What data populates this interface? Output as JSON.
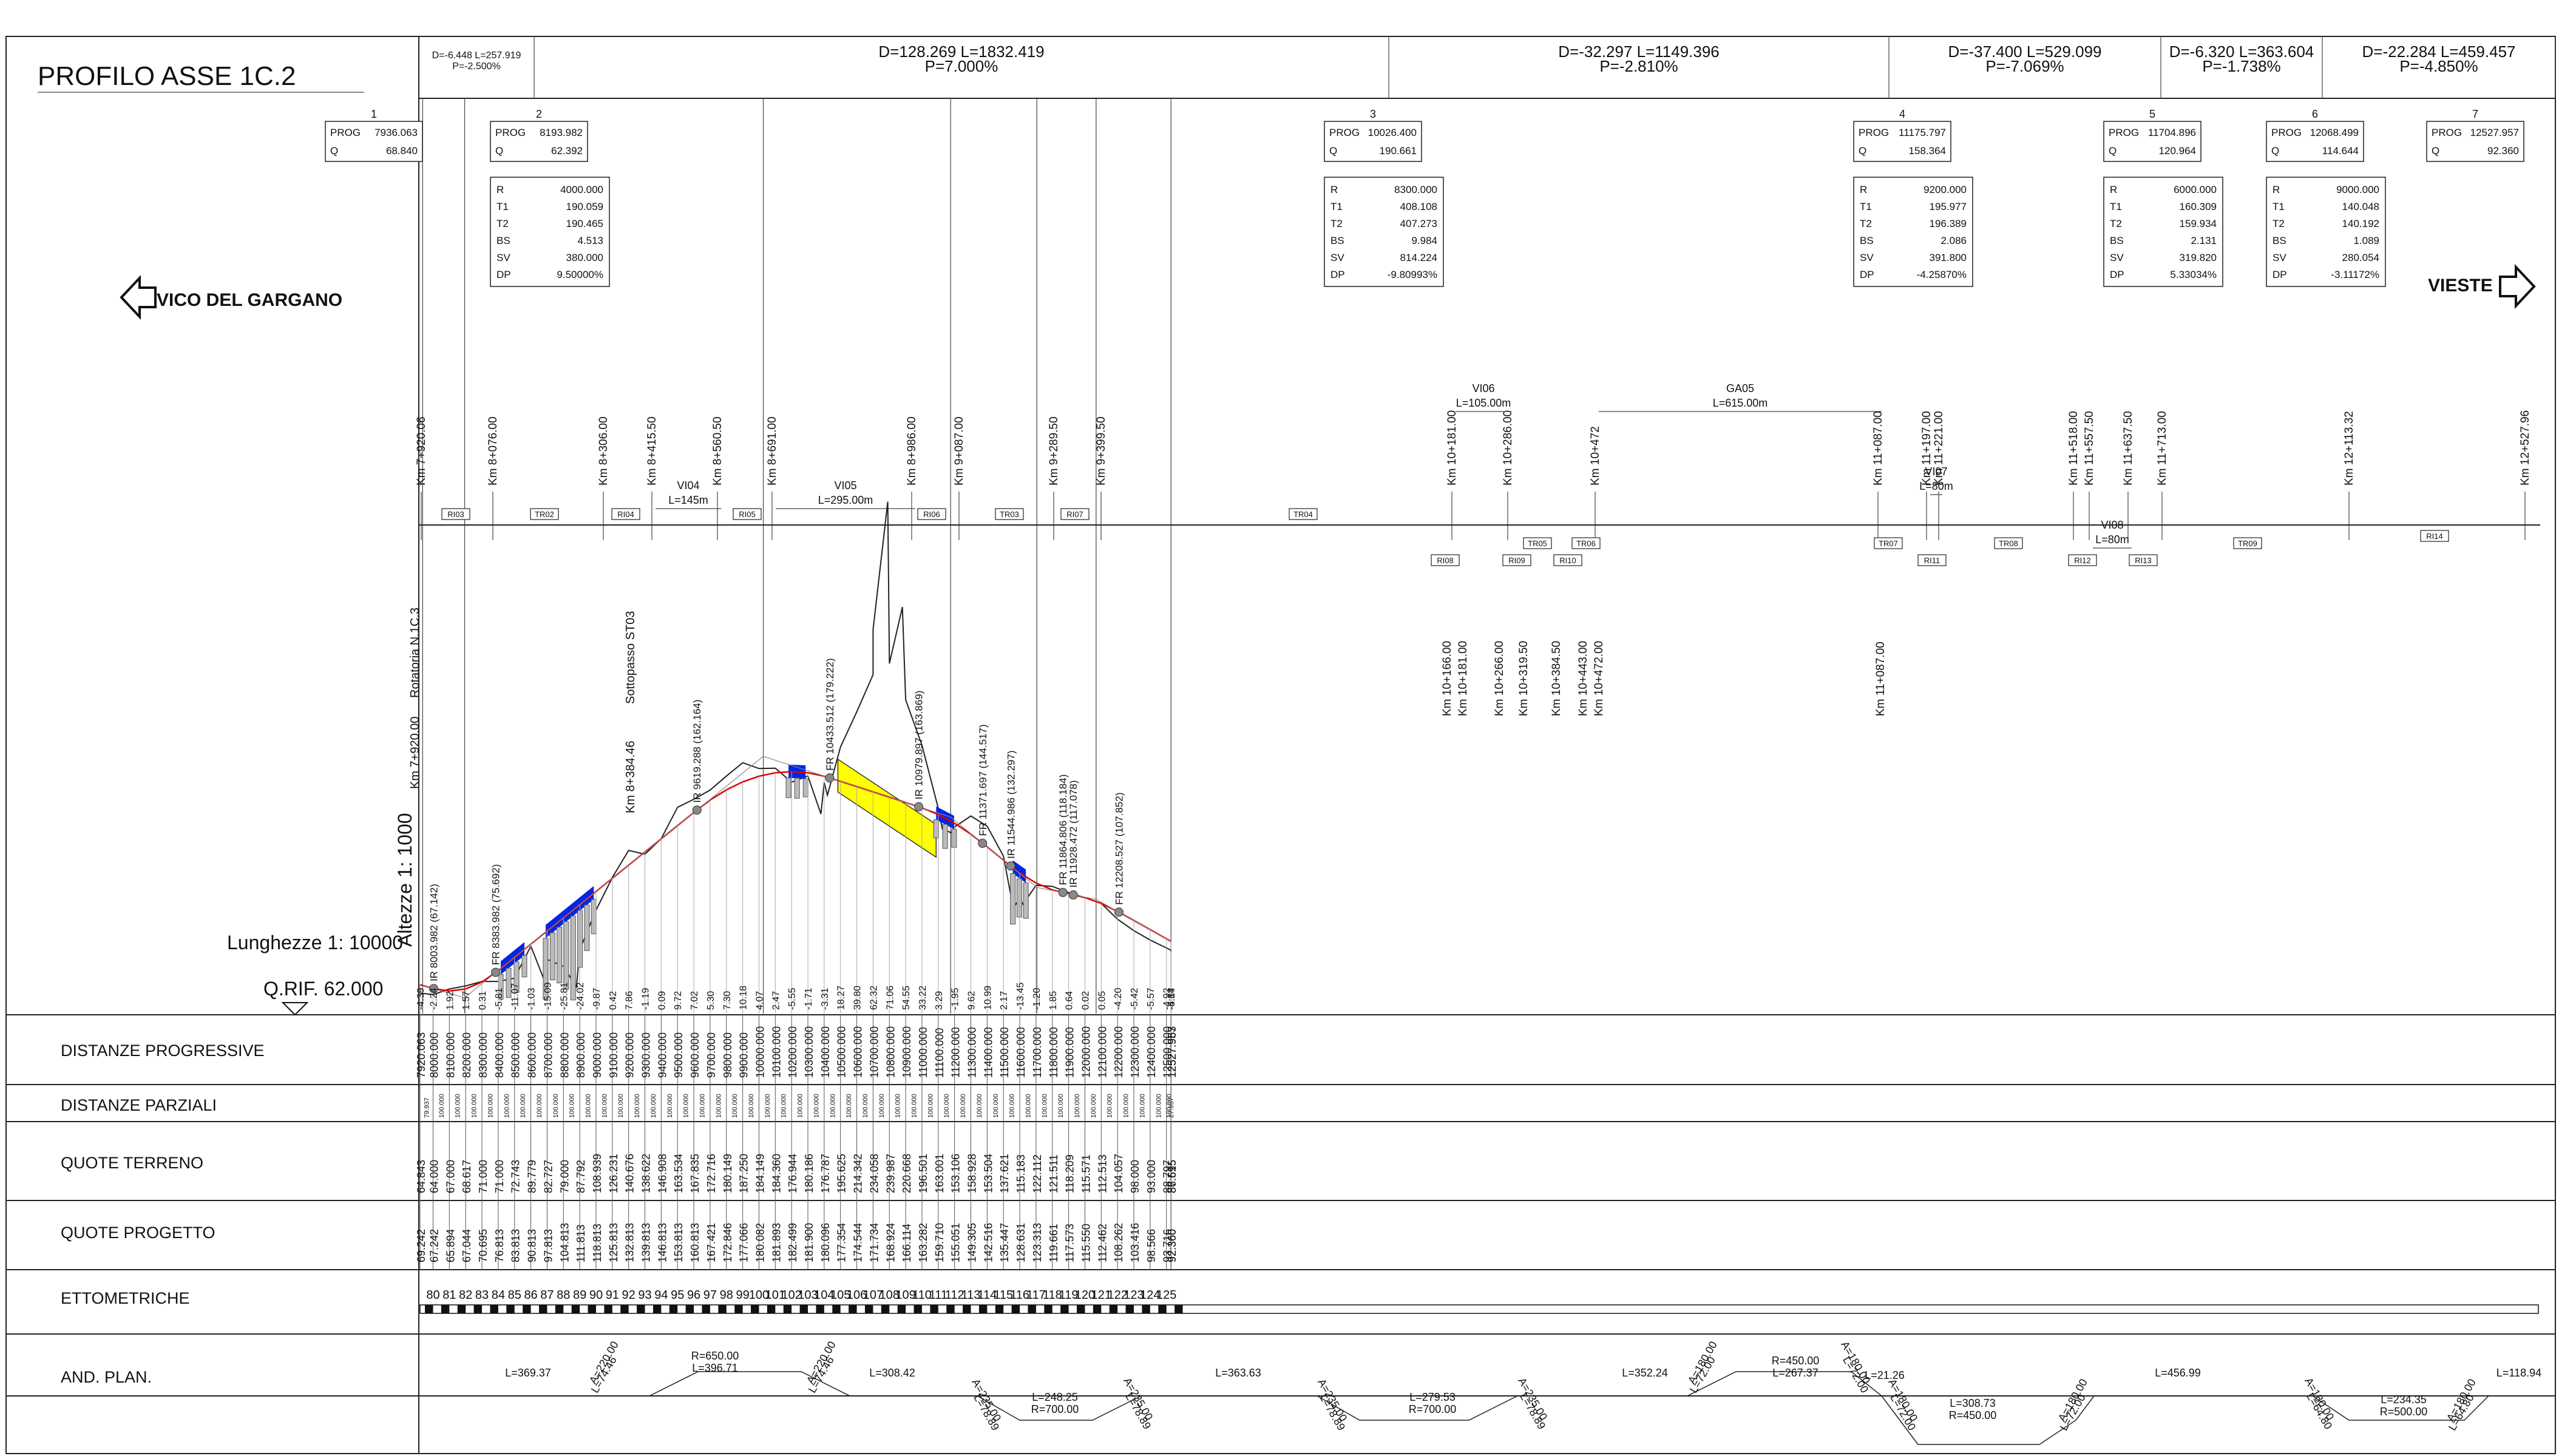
{
  "title": "PROFILO ASSE 1C.2",
  "direction_left": "VICO DEL GARGANO",
  "direction_right": "VIESTE",
  "scale_vertical": "Altezze 1: 1000",
  "scale_horizontal": "Lunghezze 1: 10000",
  "reference_level": "Q.RIF. 62.000",
  "rotatoria_label": "Rotatoria N.1C.3",
  "km_start_label": "Km 7+920.00",
  "sottopasso_label": "Sottopasso ST03",
  "sottopasso_km": "Km 8+384.46",
  "gradients": [
    {
      "d": "D=-6.448 L=257.919",
      "p": "P=-2.500%"
    },
    {
      "d": "D=128.269 L=1832.419",
      "p": "P=7.000%"
    },
    {
      "d": "D=-32.297 L=1149.396",
      "p": "P=-2.810%"
    },
    {
      "d": "D=-37.400 L=529.099",
      "p": "P=-7.069%"
    },
    {
      "d": "D=-6.320 L=363.604",
      "p": "P=-1.738%"
    },
    {
      "d": "D=-22.284 L=459.457",
      "p": "P=-4.850%"
    }
  ],
  "vertices": [
    {
      "n": "1",
      "prog": "7936.063",
      "q": "68.840"
    },
    {
      "n": "2",
      "prog": "8193.982",
      "q": "62.392",
      "r": "4000.000",
      "t1": "190.059",
      "t2": "190.465",
      "bs": "4.513",
      "sv": "380.000",
      "dp": "9.50000%"
    },
    {
      "n": "3",
      "prog": "10026.400",
      "q": "190.661",
      "r": "8300.000",
      "t1": "408.108",
      "t2": "407.273",
      "bs": "9.984",
      "sv": "814.224",
      "dp": "-9.80993%"
    },
    {
      "n": "4",
      "prog": "11175.797",
      "q": "158.364",
      "r": "9200.000",
      "t1": "195.977",
      "t2": "196.389",
      "bs": "2.086",
      "sv": "391.800",
      "dp": "-4.25870%"
    },
    {
      "n": "5",
      "prog": "11704.896",
      "q": "120.964",
      "r": "6000.000",
      "t1": "160.309",
      "t2": "159.934",
      "bs": "2.131",
      "sv": "319.820",
      "dp": "5.33034%"
    },
    {
      "n": "6",
      "prog": "12068.499",
      "q": "114.644",
      "r": "9000.000",
      "t1": "140.048",
      "t2": "140.192",
      "bs": "1.089",
      "sv": "280.054",
      "dp": "-3.11172%"
    },
    {
      "n": "7",
      "prog": "12527.957",
      "q": "92.360"
    }
  ],
  "param_labels": {
    "prog": "PROG",
    "q": "Q",
    "r": "R",
    "t1": "T1",
    "t2": "T2",
    "bs": "BS",
    "sv": "SV",
    "dp": "DP"
  },
  "km_labels": [
    {
      "t": "Km 7+920.06"
    },
    {
      "t": "Km 8+076.00"
    },
    {
      "t": "Km 8+306.00"
    },
    {
      "t": "Km 8+415.50"
    },
    {
      "t": "Km 8+560.50"
    },
    {
      "t": "Km 8+691.00"
    },
    {
      "t": "Km 8+986.00"
    },
    {
      "t": "Km 9+087.00"
    },
    {
      "t": "Km 9+289.50"
    },
    {
      "t": "Km 9+399.50"
    },
    {
      "t": "Km 10+181.00"
    },
    {
      "t": "Km 10+286.00"
    },
    {
      "t": "Km 10+472"
    },
    {
      "t": "Km 11+087.00"
    },
    {
      "t": "Km 11+197.00"
    },
    {
      "t": "Km 11+221.00"
    },
    {
      "t": "Km 11+518.00"
    },
    {
      "t": "Km 11+557.50"
    },
    {
      "t": "Km 11+637.50"
    },
    {
      "t": "Km 11+713.00"
    },
    {
      "t": "Km 12+113.32"
    },
    {
      "t": "Km 12+527.96"
    }
  ],
  "lower_km_labels": [
    {
      "t": "Km 10+166.00"
    },
    {
      "t": "Km 10+181.00"
    },
    {
      "t": "Km 10+266.00"
    },
    {
      "t": "Km 10+319.50"
    },
    {
      "t": "Km 10+384.50"
    },
    {
      "t": "Km 10+443.00"
    },
    {
      "t": "Km 10+472.00"
    },
    {
      "t": "Km 11+087.00"
    }
  ],
  "structures": [
    {
      "name": "VI04",
      "len": "L=145m"
    },
    {
      "name": "VI05",
      "len": "L=295.00m"
    },
    {
      "name": "VI06",
      "len": "L=105.00m"
    },
    {
      "name": "GA05",
      "len": "L=615.00m"
    },
    {
      "name": "VI07",
      "len": "L=80m"
    },
    {
      "name": "VI08",
      "len": "L=80m"
    }
  ],
  "tags": [
    "RI03",
    "TR02",
    "RI04",
    "RI05",
    "RI06",
    "TR03",
    "RI07",
    "TR04",
    "RI08",
    "RI09",
    "TR05",
    "RI10",
    "TR06",
    "TR07",
    "RI11",
    "TR08",
    "RI12",
    "RI13",
    "TR09",
    "RI14"
  ],
  "fr_points": [
    {
      "t": "IR 8003.982 (67.142)"
    },
    {
      "t": "FR 8383.982 (75.692)"
    },
    {
      "t": "IR 9619.288 (162.164)"
    },
    {
      "t": "FR 10433.512 (179.222)"
    },
    {
      "t": "IR 10979.897 (163.869)"
    },
    {
      "t": "FR 11371.697 (144.517)"
    },
    {
      "t": "IR 11544.986 (132.297)"
    },
    {
      "t": "FR 11864.806 (118.184)"
    },
    {
      "t": "IR 11928.472 (117.078)"
    },
    {
      "t": "FR 12208.527 (107.852)"
    }
  ],
  "bottom_diffs": [
    "-4.39",
    "-2.24",
    "1.92",
    "1.57",
    "0.31",
    "-5.81",
    "-11.07",
    "-1.03",
    "-15.09",
    "-25.81",
    "-24.02",
    "-9.87",
    "0.42",
    "7.86",
    "-1.19",
    "0.09",
    "9.72",
    "7.02",
    "5.30",
    "7.30",
    "10.18",
    "4.07",
    "2.47",
    "-5.55",
    "-1.71",
    "-3.31",
    "18.27",
    "39.80",
    "62.32",
    "71.06",
    "54.55",
    "33.22",
    "3.29",
    "-1.95",
    "9.62",
    "10.99",
    "2.17",
    "-13.45",
    "-1.20",
    "1.85",
    "0.64",
    "0.02",
    "0.05",
    "-4.20",
    "-5.42",
    "-5.57",
    "-4.92",
    "-4.84",
    "-5.17"
  ],
  "table_labels": {
    "distanze_progressive": "DISTANZE PROGRESSIVE",
    "distanze_parziali": "DISTANZE PARZIALI",
    "quote_terreno": "QUOTE TERRENO",
    "quote_progetto": "QUOTE PROGETTO",
    "ettometriche": "ETTOMETRICHE",
    "and_plan": "AND. PLAN."
  },
  "progressive": [
    "7920.063",
    "8000.000",
    "8100.000",
    "8200.000",
    "8300.000",
    "8400.000",
    "8500.000",
    "8600.000",
    "8700.000",
    "8800.000",
    "8900.000",
    "9000.000",
    "9100.000",
    "9200.000",
    "9300.000",
    "9400.000",
    "9500.000",
    "9600.000",
    "9700.000",
    "9800.000",
    "9900.000",
    "10000.000",
    "10100.000",
    "10200.000",
    "10300.000",
    "10400.000",
    "10500.000",
    "10600.000",
    "10700.000",
    "10800.000",
    "10900.000",
    "11000.000",
    "11100.000",
    "11200.000",
    "11300.000",
    "11400.000",
    "11500.000",
    "11600.000",
    "11700.000",
    "11800.000",
    "11900.000",
    "12000.000",
    "12100.000",
    "12200.000",
    "12300.000",
    "12400.000",
    "12500.000",
    "12527.957",
    "12527.963"
  ],
  "partial_first": "79.937",
  "partial_std": "100.000",
  "partial_last": "27.957",
  "terreno": [
    "64.843",
    "64.000",
    "67.000",
    "68.617",
    "71.000",
    "71.000",
    "72.743",
    "89.779",
    "82.727",
    "79.000",
    "87.792",
    "108.939",
    "126.231",
    "140.676",
    "138.622",
    "146.908",
    "163.534",
    "167.835",
    "172.716",
    "180.149",
    "187.250",
    "184.149",
    "184.360",
    "176.944",
    "180.186",
    "176.787",
    "195.625",
    "214.342",
    "234.058",
    "239.987",
    "220.668",
    "196.501",
    "163.001",
    "153.106",
    "158.928",
    "153.504",
    "137.621",
    "115.183",
    "122.112",
    "121.511",
    "118.209",
    "115.571",
    "112.513",
    "104.057",
    "98.000",
    "93.000",
    "88.797",
    "87.515",
    "86.695"
  ],
  "progetto": [
    "69.242",
    "67.242",
    "65.894",
    "67.044",
    "70.695",
    "76.813",
    "83.813",
    "90.813",
    "97.813",
    "104.813",
    "111.813",
    "118.813",
    "125.813",
    "132.813",
    "139.813",
    "146.813",
    "153.813",
    "160.813",
    "167.421",
    "172.846",
    "177.066",
    "180.082",
    "181.893",
    "182.499",
    "181.900",
    "180.096",
    "177.354",
    "174.544",
    "171.734",
    "168.924",
    "166.114",
    "163.282",
    "159.710",
    "155.051",
    "149.305",
    "142.516",
    "135.447",
    "128.631",
    "123.313",
    "119.661",
    "117.573",
    "115.550",
    "112.462",
    "108.262",
    "103.416",
    "98.566",
    "93.716",
    "92.360",
    "92.360"
  ],
  "hectometric": [
    "80",
    "81",
    "82",
    "83",
    "84",
    "85",
    "86",
    "87",
    "88",
    "89",
    "90",
    "91",
    "92",
    "93",
    "94",
    "95",
    "96",
    "97",
    "98",
    "99",
    "100",
    "101",
    "102",
    "103",
    "104",
    "105",
    "106",
    "107",
    "108",
    "109",
    "110",
    "111",
    "112",
    "113",
    "114",
    "115",
    "116",
    "117",
    "118",
    "119",
    "120",
    "121",
    "122",
    "123",
    "124",
    "125"
  ],
  "plan": [
    {
      "a": "L=369.37"
    },
    {
      "a": "A=220.00",
      "b": "L=74.46"
    },
    {
      "a": "R=650.00",
      "b": "L=396.71"
    },
    {
      "a": "A=220.00",
      "b": "L=74.46"
    },
    {
      "a": "L=308.42"
    },
    {
      "a": "A=235.00",
      "b": "L=78.89"
    },
    {
      "a": "L=248.25",
      "b": "R=700.00"
    },
    {
      "a": "A=235.00",
      "b": "L=78.89"
    },
    {
      "a": "L=363.63"
    },
    {
      "a": "A=235.00",
      "b": "L=78.89"
    },
    {
      "a": "L=279.53",
      "b": "R=700.00"
    },
    {
      "a": "A=235.00",
      "b": "L=78.89"
    },
    {
      "a": "L=352.24"
    },
    {
      "a": "A=180.00",
      "b": "L=72.00"
    },
    {
      "a": "R=450.00",
      "b": "L=267.37"
    },
    {
      "a": "A=180.00",
      "b": "L=72.00"
    },
    {
      "a": "L=21.26"
    },
    {
      "a": "A=180.00",
      "b": "L=72.00"
    },
    {
      "a": "L=308.73",
      "b": "R=450.00"
    },
    {
      "a": "A=180.00",
      "b": "L=72.00"
    },
    {
      "a": "L=456.99"
    },
    {
      "a": "A=180.00",
      "b": "L=64.80"
    },
    {
      "a": "L=234.35",
      "b": "R=500.00"
    },
    {
      "a": "A=180.00",
      "b": "L=64.80"
    },
    {
      "a": "L=118.94"
    }
  ],
  "colors": {
    "design_line": "#e00000",
    "viaduct": "#0026e6",
    "tunnel": "#ffff00",
    "terrain": "#222222"
  }
}
